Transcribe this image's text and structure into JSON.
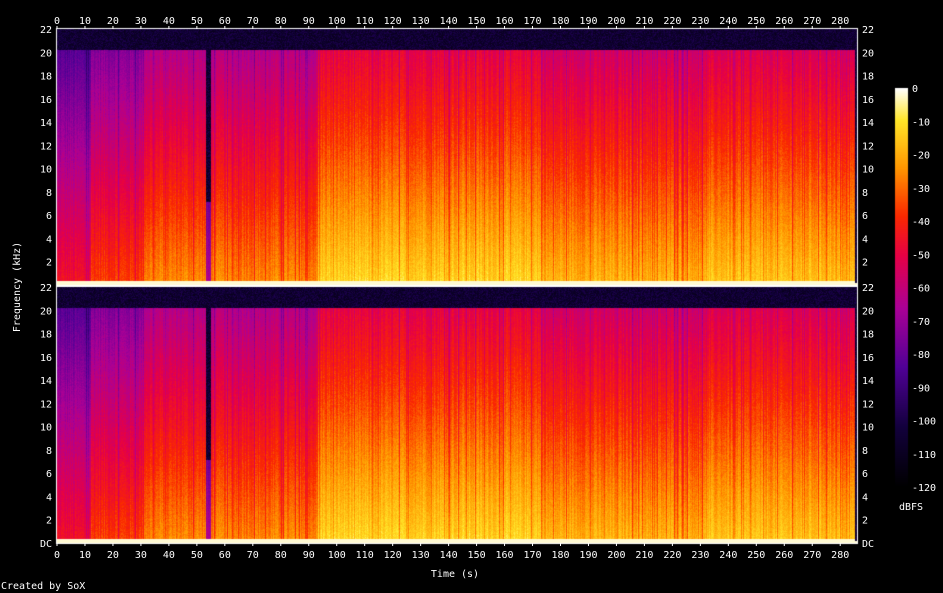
{
  "chart_data": {
    "type": "heatmap",
    "title": "",
    "xlabel": "Time (s)",
    "ylabel": "Frequency (kHz)",
    "colorbar_label": "dBFS",
    "credit": "Created by SoX",
    "channels": 2,
    "xlim": [
      0,
      286
    ],
    "ylim_khz": [
      0,
      22
    ],
    "x_ticks": [
      "0",
      "10",
      "20",
      "30",
      "40",
      "50",
      "60",
      "70",
      "80",
      "90",
      "100",
      "110",
      "120",
      "130",
      "140",
      "150",
      "160",
      "170",
      "180",
      "190",
      "200",
      "210",
      "220",
      "230",
      "240",
      "250",
      "260",
      "270",
      "280"
    ],
    "y_ticks": [
      "DC",
      "2",
      "4",
      "6",
      "8",
      "10",
      "12",
      "14",
      "16",
      "18",
      "20",
      "22"
    ],
    "colorbar_ticks": [
      "0",
      "-10",
      "-20",
      "-30",
      "-40",
      "-50",
      "-60",
      "-70",
      "-80",
      "-90",
      "-100",
      "-110",
      "-120"
    ],
    "colorbar_range_db": [
      -120,
      0
    ],
    "spectrogram": {
      "note": "",
      "segments": [
        {
          "t": [
            0,
            12
          ],
          "level_db": -75,
          "cutoff_khz": 20
        },
        {
          "t": [
            12,
            31
          ],
          "level_db": -65,
          "cutoff_khz": 20
        },
        {
          "t": [
            31,
            53
          ],
          "level_db": -55,
          "cutoff_khz": 20
        },
        {
          "t": [
            53,
            55
          ],
          "level_db": -95,
          "cutoff_khz": 7
        },
        {
          "t": [
            55,
            93
          ],
          "level_db": -55,
          "cutoff_khz": 20
        },
        {
          "t": [
            93,
            173
          ],
          "level_db": -42,
          "cutoff_khz": 20
        },
        {
          "t": [
            173,
            233
          ],
          "level_db": -48,
          "cutoff_khz": 20
        },
        {
          "t": [
            233,
            285
          ],
          "level_db": -45,
          "cutoff_khz": 20
        }
      ]
    }
  },
  "colors": {
    "background": "#000000",
    "axis": "#ffffff"
  }
}
